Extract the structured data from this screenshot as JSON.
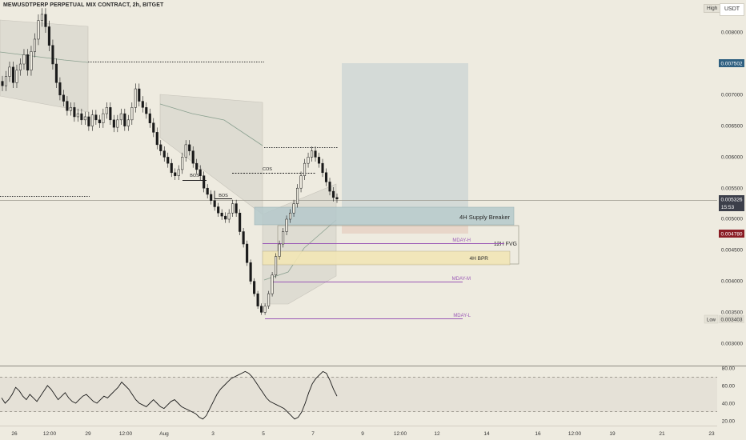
{
  "header": {
    "title": "MEWUSDTPERP PERPETUAL MIX CONTRACT, 2h, BITGET",
    "high_label": "High",
    "low_label": "Low",
    "currency_button": "USDT"
  },
  "price_axis": {
    "ticks": [
      "0.008000",
      "0.007000",
      "0.006500",
      "0.006000",
      "0.005500",
      "0.005000",
      "0.004500",
      "0.004000",
      "0.003500",
      "0.003000"
    ],
    "badge_target": "0.007502",
    "badge_current": "0.005326",
    "badge_countdown": "15:53",
    "badge_stop": "0.004780",
    "badge_low": "0.003403"
  },
  "rsi_axis": {
    "ticks": [
      "80.00",
      "60.00",
      "40.00",
      "20.00"
    ]
  },
  "time_axis": {
    "ticks": [
      "26",
      "12:00",
      "29",
      "12:00",
      "Aug",
      "3",
      "5",
      "7",
      "9",
      "12:00",
      "12",
      "14",
      "16",
      "12:00",
      "19",
      "21",
      "23"
    ]
  },
  "annotations": {
    "bos_1": "BOS",
    "bos_2": "BOS",
    "cos": "COS",
    "supply_breaker": "4H Supply Breaker",
    "fvg": "12H FVG",
    "bpr": "4H BPR",
    "mday_h": "MDAY-H",
    "mday_m": "MDAY-M",
    "mday_l": "MDAY-L"
  },
  "colors": {
    "background": "#eeebe0",
    "candle": "#1a1a1a",
    "target_zone": "#d4dad7",
    "supply_zone": "#b5c9cb",
    "bpr_zone": "#f2e6b6",
    "stop_zone": "#e7d4c6",
    "mday_line": "#9b59b6",
    "badge_target": "#2e5f80",
    "badge_stop": "#8a1c24",
    "badge_current": "#3c3f4a"
  },
  "chart_data": [
    {
      "type": "candlestick",
      "title": "MEWUSDTPERP PERPETUAL MIX CONTRACT, 2h, BITGET",
      "ylim": [
        0.0027,
        0.0085
      ],
      "date_range": [
        "Jul 26",
        "Aug 8"
      ],
      "notable_values": {
        "high": 0.0083,
        "low": 0.003403,
        "last": 0.005326
      },
      "approx_close_series": [
        0.00715,
        0.0073,
        0.00745,
        0.0072,
        0.0074,
        0.0075,
        0.00765,
        0.0074,
        0.0077,
        0.0079,
        0.0082,
        0.0083,
        0.0081,
        0.0078,
        0.0075,
        0.0072,
        0.007,
        0.0069,
        0.00675,
        0.0068,
        0.00665,
        0.0067,
        0.0066,
        0.00665,
        0.0065,
        0.00668,
        0.0066,
        0.00655,
        0.0067,
        0.0068,
        0.0066,
        0.00648,
        0.0066,
        0.0067,
        0.0065,
        0.0066,
        0.0068,
        0.0071,
        0.0069,
        0.0068,
        0.0067,
        0.00655,
        0.0064,
        0.0062,
        0.0061,
        0.006,
        0.0059,
        0.00575,
        0.0057,
        0.0058,
        0.006,
        0.0062,
        0.0061,
        0.0059,
        0.0058,
        0.0057,
        0.0055,
        0.0054,
        0.0053,
        0.0052,
        0.0051,
        0.00505,
        0.005,
        0.0051,
        0.00525,
        0.0051,
        0.0048,
        0.0046,
        0.0043,
        0.004,
        0.0038,
        0.0036,
        0.0035,
        0.0036,
        0.0038,
        0.0041,
        0.0044,
        0.0046,
        0.0048,
        0.005,
        0.0051,
        0.00525,
        0.0055,
        0.0057,
        0.0059,
        0.006,
        0.0061,
        0.006,
        0.0059,
        0.00575,
        0.0056,
        0.00545,
        0.00535,
        0.005326
      ],
      "zones": [
        {
          "name": "target",
          "from": 0.00528,
          "to": 0.007502
        },
        {
          "name": "4H Supply Breaker",
          "from": 0.00488,
          "to": 0.00521
        },
        {
          "name": "12H FVG",
          "from": 0.00432,
          "to": 0.00485
        },
        {
          "name": "4H BPR",
          "from": 0.00432,
          "to": 0.00452
        }
      ],
      "levels": [
        {
          "name": "MDAY-H",
          "value": 0.00463
        },
        {
          "name": "MDAY-M",
          "value": 0.00401
        },
        {
          "name": "MDAY-L",
          "value": 0.00341
        }
      ]
    },
    {
      "type": "line",
      "ylim": [
        10,
        85
      ],
      "reference_lines": [
        70,
        30
      ],
      "approx_series": [
        46,
        40,
        44,
        50,
        58,
        54,
        48,
        44,
        50,
        46,
        42,
        48,
        54,
        60,
        56,
        50,
        44,
        48,
        52,
        46,
        42,
        40,
        44,
        48,
        50,
        46,
        42,
        40,
        44,
        48,
        46,
        50,
        54,
        58,
        64,
        60,
        56,
        50,
        44,
        40,
        38,
        36,
        40,
        44,
        40,
        36,
        34,
        38,
        42,
        44,
        40,
        36,
        34,
        32,
        30,
        28,
        24,
        22,
        26,
        34,
        42,
        50,
        56,
        60,
        64,
        68,
        70,
        72,
        74,
        76,
        74,
        70,
        64,
        58,
        52,
        46,
        42,
        40,
        38,
        36,
        34,
        30,
        26,
        22,
        24,
        30,
        40,
        52,
        62,
        68,
        72,
        76,
        74,
        66,
        56,
        48
      ]
    }
  ]
}
